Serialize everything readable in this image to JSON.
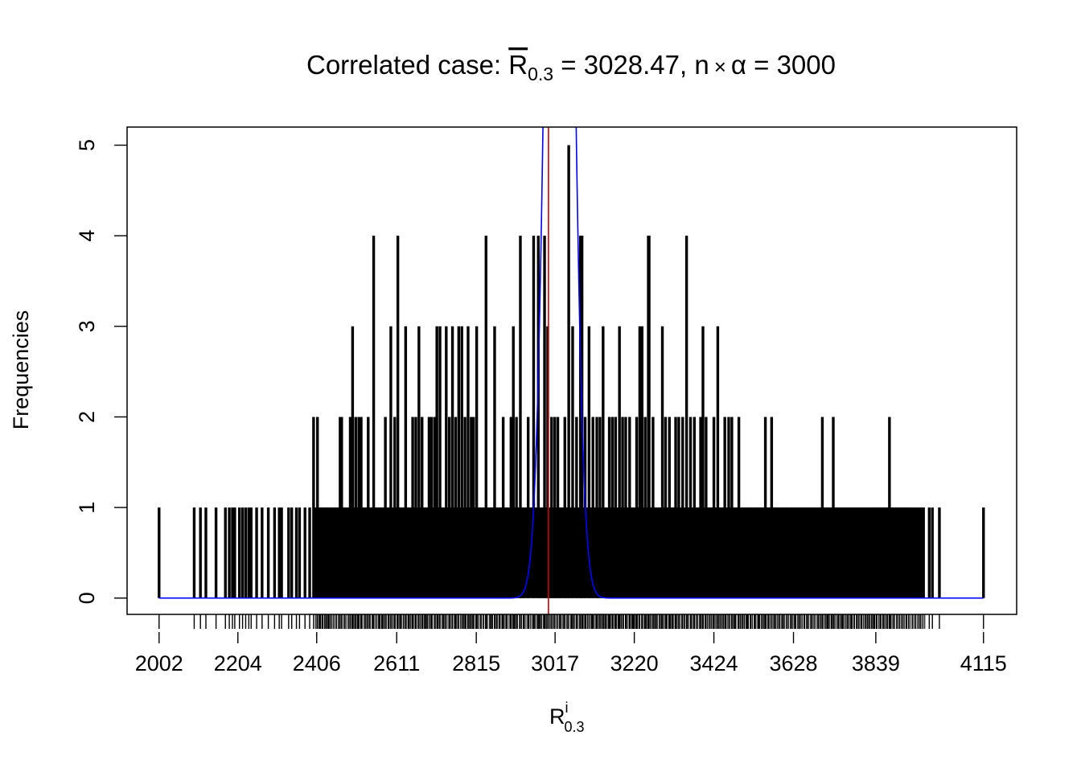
{
  "chart_data": {
    "type": "bar",
    "title": {
      "prefix": "Correlated case: ",
      "stat_symbol": "R",
      "stat_subscript": "0.3",
      "stat_value": " = 3028.47, ",
      "n_symbol": "n",
      "times_symbol": "×",
      "alpha_symbol": "α",
      "n_alpha_value": " = 3000"
    },
    "xlabel": {
      "base": "R",
      "superscript": "i",
      "subscript": "0.3"
    },
    "ylabel": "Frequencies",
    "xlim": [
      1920,
      4200
    ],
    "ylim": [
      -0.18,
      5.2
    ],
    "x_ticks": [
      2002,
      2204,
      2406,
      2611,
      2815,
      3017,
      3220,
      3424,
      3628,
      3839,
      4115
    ],
    "x_tick_labels": [
      "2002",
      "2204",
      "2406",
      "2611",
      "2815",
      "3017",
      "3220",
      "3424",
      "3628",
      "3839",
      "4115"
    ],
    "y_ticks": [
      0,
      1,
      2,
      3,
      4,
      5
    ],
    "y_tick_labels": [
      "0",
      "1",
      "2",
      "3",
      "4",
      "5"
    ],
    "range": [
      2002,
      4115
    ],
    "mean_line": {
      "x": 3000,
      "color": "#cc0000"
    },
    "density_curve": {
      "mean": 3028.47,
      "sd": 28,
      "peak": 16.5,
      "color": "#0000ff"
    },
    "bar_color": "#000000",
    "series": [
      {
        "name": "",
        "bars": [
          [
            2002,
            1
          ],
          [
            2092,
            1
          ],
          [
            2108,
            1
          ],
          [
            2122,
            1
          ],
          [
            2148,
            1
          ],
          [
            2172,
            1
          ],
          [
            2182,
            1
          ],
          [
            2190,
            1
          ],
          [
            2196,
            1
          ],
          [
            2208,
            1
          ],
          [
            2216,
            1
          ],
          [
            2224,
            1
          ],
          [
            2232,
            1
          ],
          [
            2238,
            1
          ],
          [
            2252,
            1
          ],
          [
            2266,
            1
          ],
          [
            2282,
            1
          ],
          [
            2298,
            1
          ],
          [
            2310,
            1
          ],
          [
            2316,
            1
          ],
          [
            2334,
            1
          ],
          [
            2342,
            1
          ],
          [
            2354,
            1
          ],
          [
            2362,
            1
          ],
          [
            2376,
            1
          ],
          [
            2388,
            1
          ],
          [
            2398,
            2
          ],
          [
            2408,
            2
          ],
          [
            2414,
            1
          ],
          [
            2422,
            1
          ],
          [
            2430,
            1
          ],
          [
            2436,
            1
          ],
          [
            2466,
            2
          ],
          [
            2470,
            2
          ],
          [
            2478,
            1
          ],
          [
            2492,
            2
          ],
          [
            2498,
            3
          ],
          [
            2506,
            2
          ],
          [
            2514,
            2
          ],
          [
            2520,
            2
          ],
          [
            2530,
            1
          ],
          [
            2538,
            2
          ],
          [
            2552,
            4
          ],
          [
            2566,
            1
          ],
          [
            2574,
            1
          ],
          [
            2582,
            2
          ],
          [
            2590,
            1
          ],
          [
            2596,
            3
          ],
          [
            2606,
            2
          ],
          [
            2614,
            4
          ],
          [
            2622,
            1
          ],
          [
            2634,
            3
          ],
          [
            2642,
            1
          ],
          [
            2652,
            2
          ],
          [
            2660,
            2
          ],
          [
            2668,
            3
          ],
          [
            2676,
            2
          ],
          [
            2686,
            1
          ],
          [
            2694,
            2
          ],
          [
            2700,
            2
          ],
          [
            2708,
            2
          ],
          [
            2714,
            3
          ],
          [
            2722,
            3
          ],
          [
            2730,
            1
          ],
          [
            2738,
            3
          ],
          [
            2746,
            2
          ],
          [
            2754,
            3
          ],
          [
            2762,
            2
          ],
          [
            2770,
            3
          ],
          [
            2778,
            3
          ],
          [
            2786,
            2
          ],
          [
            2794,
            3
          ],
          [
            2802,
            2
          ],
          [
            2808,
            2
          ],
          [
            2816,
            3
          ],
          [
            2826,
            1
          ],
          [
            2840,
            4
          ],
          [
            2852,
            1
          ],
          [
            2862,
            3
          ],
          [
            2876,
            1
          ],
          [
            2884,
            2
          ],
          [
            2892,
            1
          ],
          [
            2904,
            2
          ],
          [
            2910,
            3
          ],
          [
            2918,
            2
          ],
          [
            2928,
            4
          ],
          [
            2936,
            1
          ],
          [
            2948,
            2
          ],
          [
            2962,
            4
          ],
          [
            2974,
            4
          ],
          [
            2982,
            1
          ],
          [
            2990,
            4
          ],
          [
            2998,
            3
          ],
          [
            3008,
            2
          ],
          [
            3016,
            2
          ],
          [
            3024,
            2
          ],
          [
            3032,
            1
          ],
          [
            3042,
            2
          ],
          [
            3052,
            5
          ],
          [
            3062,
            3
          ],
          [
            3072,
            2
          ],
          [
            3082,
            4
          ],
          [
            3086,
            4
          ],
          [
            3094,
            2
          ],
          [
            3104,
            3
          ],
          [
            3114,
            2
          ],
          [
            3124,
            2
          ],
          [
            3132,
            2
          ],
          [
            3140,
            3
          ],
          [
            3148,
            1
          ],
          [
            3156,
            2
          ],
          [
            3164,
            2
          ],
          [
            3172,
            2
          ],
          [
            3182,
            3
          ],
          [
            3190,
            2
          ],
          [
            3198,
            2
          ],
          [
            3208,
            2
          ],
          [
            3218,
            1
          ],
          [
            3226,
            2
          ],
          [
            3234,
            3
          ],
          [
            3240,
            3
          ],
          [
            3248,
            2
          ],
          [
            3256,
            4
          ],
          [
            3258,
            4
          ],
          [
            3268,
            2
          ],
          [
            3276,
            1
          ],
          [
            3284,
            1
          ],
          [
            3292,
            3
          ],
          [
            3300,
            2
          ],
          [
            3310,
            2
          ],
          [
            3318,
            1
          ],
          [
            3326,
            2
          ],
          [
            3334,
            2
          ],
          [
            3344,
            2
          ],
          [
            3354,
            4
          ],
          [
            3364,
            2
          ],
          [
            3374,
            2
          ],
          [
            3382,
            1
          ],
          [
            3390,
            2
          ],
          [
            3396,
            3
          ],
          [
            3404,
            2
          ],
          [
            3414,
            1
          ],
          [
            3424,
            2
          ],
          [
            3434,
            3
          ],
          [
            3442,
            1
          ],
          [
            3452,
            2
          ],
          [
            3462,
            2
          ],
          [
            3470,
            2
          ],
          [
            3480,
            1
          ],
          [
            3488,
            2
          ],
          [
            3498,
            1
          ],
          [
            3508,
            1
          ],
          [
            3518,
            1
          ],
          [
            3528,
            1
          ],
          [
            3538,
            1
          ],
          [
            3548,
            1
          ],
          [
            3556,
            2
          ],
          [
            3564,
            1
          ],
          [
            3572,
            2
          ],
          [
            3580,
            1
          ],
          [
            3590,
            1
          ],
          [
            3602,
            1
          ],
          [
            3612,
            1
          ],
          [
            3624,
            1
          ],
          [
            3632,
            1
          ],
          [
            3644,
            1
          ],
          [
            3656,
            1
          ],
          [
            3664,
            1
          ],
          [
            3676,
            1
          ],
          [
            3692,
            1
          ],
          [
            3702,
            2
          ],
          [
            3716,
            1
          ],
          [
            3730,
            2
          ],
          [
            3744,
            1
          ],
          [
            3752,
            1
          ],
          [
            3766,
            1
          ],
          [
            3778,
            1
          ],
          [
            3790,
            1
          ],
          [
            3802,
            1
          ],
          [
            3814,
            1
          ],
          [
            3824,
            1
          ],
          [
            3834,
            1
          ],
          [
            3840,
            1
          ],
          [
            3850,
            1
          ],
          [
            3858,
            1
          ],
          [
            3868,
            1
          ],
          [
            3874,
            2
          ],
          [
            3884,
            1
          ],
          [
            3900,
            1
          ],
          [
            3918,
            1
          ],
          [
            3976,
            1
          ],
          [
            3984,
            1
          ],
          [
            4002,
            1
          ],
          [
            4115,
            1
          ]
        ]
      }
    ]
  }
}
